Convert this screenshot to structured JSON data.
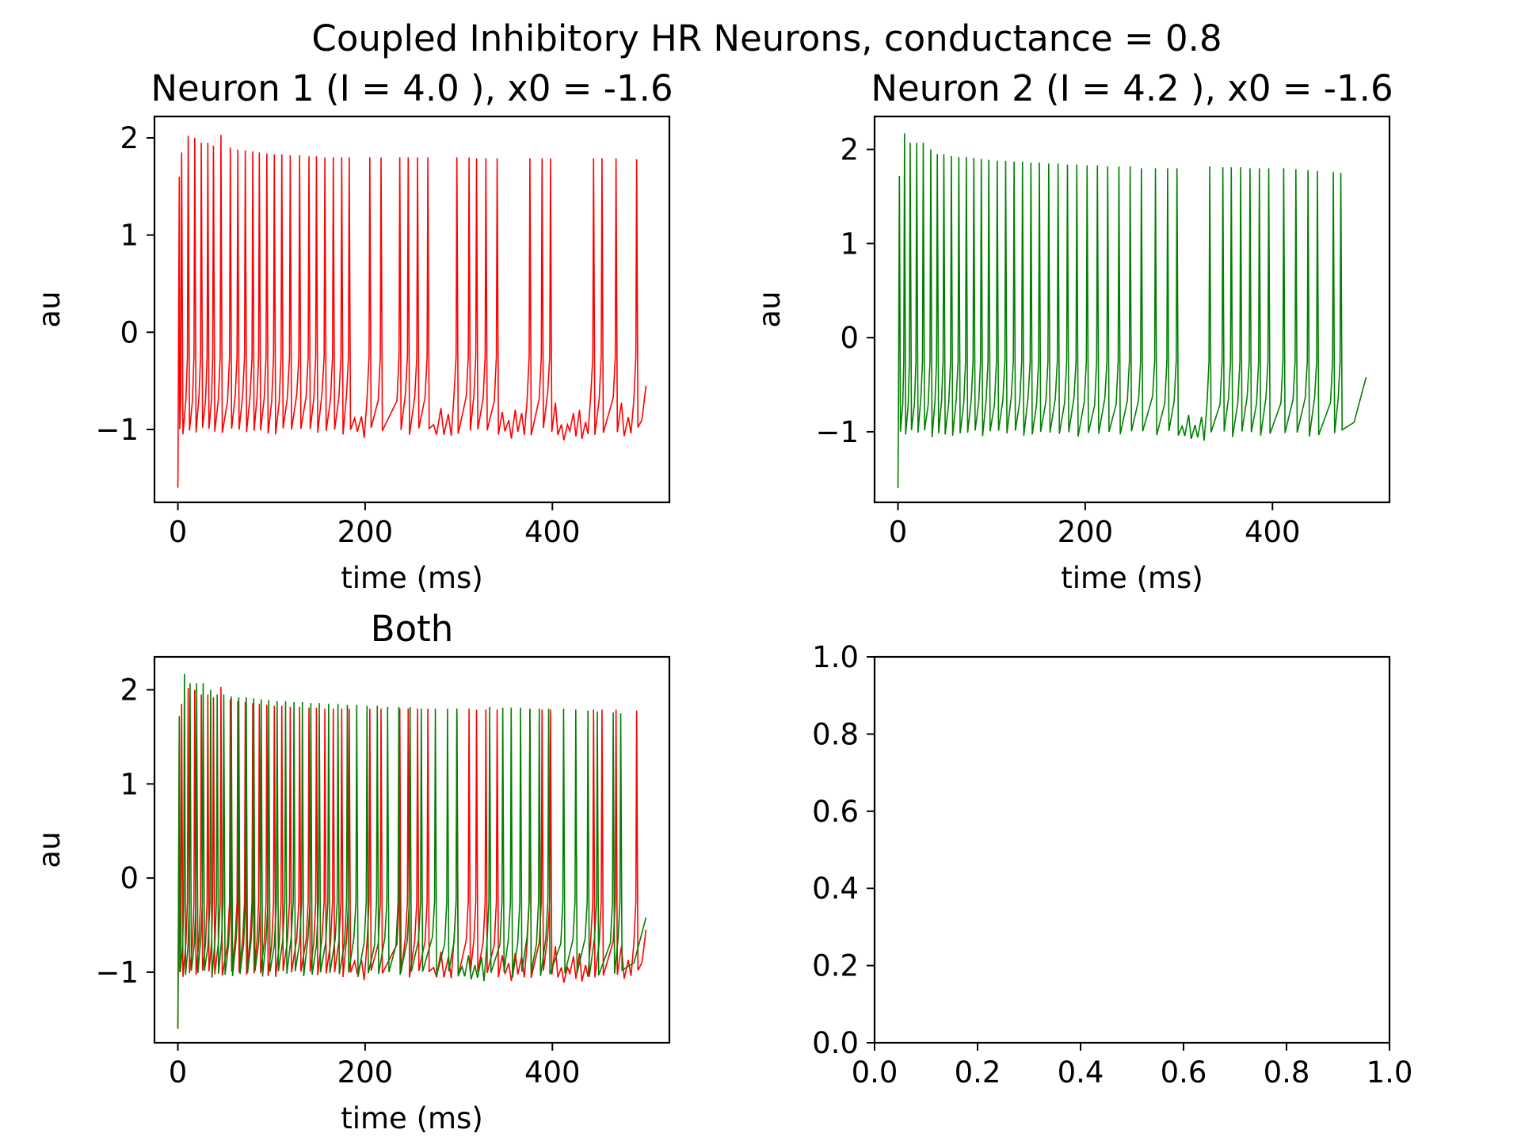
{
  "figure": {
    "suptitle": "Coupled Inhibitory HR Neurons, conductance = 0.8"
  },
  "colors": {
    "neuron1": "#ff0000",
    "neuron2": "#008000",
    "axes": "#000000",
    "background": "#ffffff"
  },
  "chart_data": [
    {
      "id": "neuron1",
      "type": "line",
      "title": "Neuron 1 (I = 4.0 ), x0 = -1.6",
      "xlabel": "time (ms)",
      "ylabel": "au",
      "xlim": [
        -25,
        525
      ],
      "ylim": [
        -1.75,
        2.22
      ],
      "xticks": [
        0,
        200,
        400
      ],
      "xtick_labels": [
        "0",
        "200",
        "400"
      ],
      "yticks": [
        -1,
        0,
        1,
        2
      ],
      "ytick_labels": [
        "−1",
        "0",
        "1",
        "2"
      ],
      "grid": false,
      "series": [
        {
          "color": "#ff0000",
          "initial": [
            [
              0,
              -1.6
            ],
            [
              0.6,
              -0.4
            ],
            [
              1.5,
              1.6
            ]
          ],
          "end": [
            500,
            -0.55
          ],
          "spikes": [
            [
              4,
              1.85
            ],
            [
              11,
              2.02
            ],
            [
              18,
              2.0
            ],
            [
              25,
              1.95
            ],
            [
              32,
              1.95
            ],
            [
              38,
              1.92
            ],
            [
              46,
              2.03
            ],
            [
              56,
              1.9
            ],
            [
              64,
              1.88
            ],
            [
              72,
              1.87
            ],
            [
              80,
              1.86
            ],
            [
              87,
              1.85
            ],
            [
              95,
              1.84
            ],
            [
              103,
              1.83
            ],
            [
              111,
              1.83
            ],
            [
              120,
              1.82
            ],
            [
              130,
              1.82
            ],
            [
              140,
              1.81
            ],
            [
              148,
              1.81
            ],
            [
              157,
              1.8
            ],
            [
              166,
              1.8
            ],
            [
              175,
              1.8
            ],
            [
              183,
              1.8
            ],
            [
              205,
              1.8
            ],
            [
              217,
              1.8
            ],
            [
              237,
              1.8
            ],
            [
              246,
              1.8
            ],
            [
              256,
              1.8
            ],
            [
              267,
              1.8
            ],
            [
              298,
              1.8
            ],
            [
              311,
              1.8
            ],
            [
              319,
              1.79
            ],
            [
              329,
              1.79
            ],
            [
              341,
              1.79
            ],
            [
              376,
              1.79
            ],
            [
              389,
              1.79
            ],
            [
              398,
              1.79
            ],
            [
              444,
              1.79
            ],
            [
              453,
              1.79
            ],
            [
              468,
              1.79
            ],
            [
              490,
              1.78
            ]
          ]
        }
      ]
    },
    {
      "id": "neuron2",
      "type": "line",
      "title": "Neuron 2 (I = 4.2 ), x0 = -1.6",
      "xlabel": "time (ms)",
      "ylabel": "au",
      "xlim": [
        -25,
        525
      ],
      "ylim": [
        -1.75,
        2.35
      ],
      "xticks": [
        0,
        200,
        400
      ],
      "xtick_labels": [
        "0",
        "200",
        "400"
      ],
      "yticks": [
        -1,
        0,
        1,
        2
      ],
      "ytick_labels": [
        "−1",
        "0",
        "1",
        "2"
      ],
      "grid": false,
      "series": [
        {
          "color": "#008000",
          "initial": [
            [
              0,
              -1.6
            ],
            [
              0.6,
              -0.6
            ],
            [
              1.5,
              1.72
            ]
          ],
          "end": [
            500,
            -0.42
          ],
          "spikes": [
            [
              7,
              2.17
            ],
            [
              13,
              2.07
            ],
            [
              20,
              2.07
            ],
            [
              27,
              2.07
            ],
            [
              35,
              2.0
            ],
            [
              42,
              1.95
            ],
            [
              49,
              1.95
            ],
            [
              57,
              1.93
            ],
            [
              65,
              1.92
            ],
            [
              73,
              1.92
            ],
            [
              81,
              1.91
            ],
            [
              89,
              1.9
            ],
            [
              97,
              1.89
            ],
            [
              106,
              1.88
            ],
            [
              115,
              1.88
            ],
            [
              124,
              1.87
            ],
            [
              133,
              1.87
            ],
            [
              142,
              1.86
            ],
            [
              151,
              1.86
            ],
            [
              161,
              1.85
            ],
            [
              171,
              1.85
            ],
            [
              181,
              1.84
            ],
            [
              191,
              1.84
            ],
            [
              202,
              1.83
            ],
            [
              213,
              1.83
            ],
            [
              224,
              1.82
            ],
            [
              236,
              1.82
            ],
            [
              248,
              1.82
            ],
            [
              260,
              1.8
            ],
            [
              275,
              1.8
            ],
            [
              288,
              1.8
            ],
            [
              298,
              1.8
            ],
            [
              333,
              1.82
            ],
            [
              347,
              1.81
            ],
            [
              356,
              1.81
            ],
            [
              366,
              1.81
            ],
            [
              376,
              1.8
            ],
            [
              386,
              1.8
            ],
            [
              396,
              1.8
            ],
            [
              412,
              1.8
            ],
            [
              425,
              1.79
            ],
            [
              438,
              1.78
            ],
            [
              448,
              1.77
            ],
            [
              465,
              1.76
            ],
            [
              473,
              1.75
            ]
          ]
        }
      ]
    },
    {
      "id": "both",
      "type": "line",
      "title": "Both",
      "xlabel": "time (ms)",
      "ylabel": "au",
      "xlim": [
        -25,
        525
      ],
      "ylim": [
        -1.75,
        2.35
      ],
      "xticks": [
        0,
        200,
        400
      ],
      "xtick_labels": [
        "0",
        "200",
        "400"
      ],
      "yticks": [
        -1,
        0,
        1,
        2
      ],
      "ytick_labels": [
        "−1",
        "0",
        "1",
        "2"
      ],
      "grid": false,
      "series_refs": [
        "neuron1",
        "neuron2"
      ]
    },
    {
      "id": "empty",
      "type": "line",
      "title": "",
      "xlabel": "",
      "ylabel": "",
      "xlim": [
        0,
        1
      ],
      "ylim": [
        0,
        1
      ],
      "xticks": [
        0,
        0.2,
        0.4,
        0.6,
        0.8,
        1.0
      ],
      "xtick_labels": [
        "0.0",
        "0.2",
        "0.4",
        "0.6",
        "0.8",
        "1.0"
      ],
      "yticks": [
        0,
        0.2,
        0.4,
        0.6,
        0.8,
        1.0
      ],
      "ytick_labels": [
        "0.0",
        "0.2",
        "0.4",
        "0.6",
        "0.8",
        "1.0"
      ],
      "grid": false,
      "series": []
    }
  ]
}
